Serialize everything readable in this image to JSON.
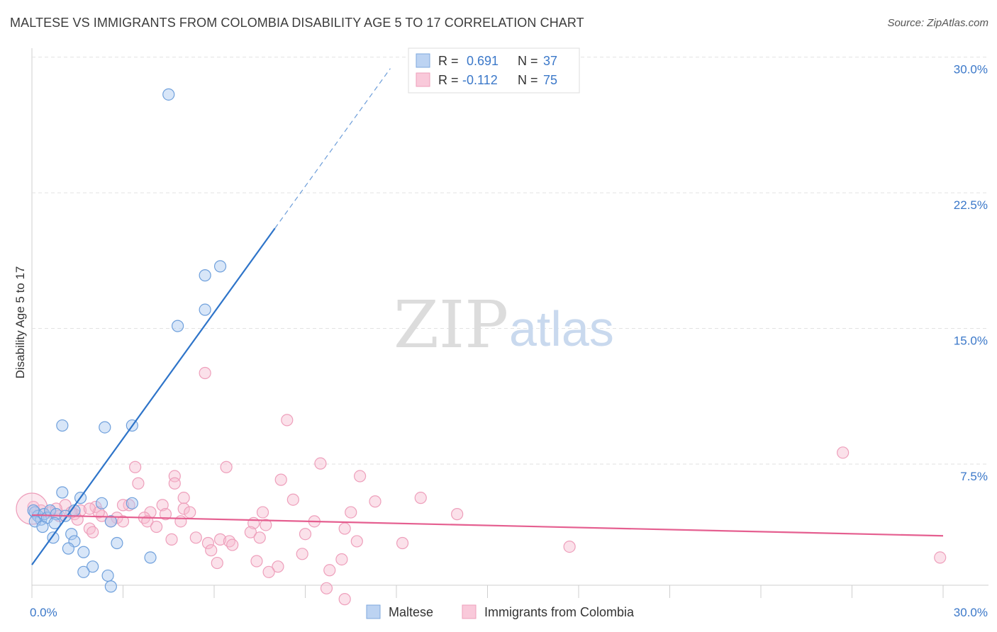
{
  "title": "MALTESE VS IMMIGRANTS FROM COLOMBIA DISABILITY AGE 5 TO 17 CORRELATION CHART",
  "source": "Source: ZipAtlas.com",
  "watermark": {
    "zip": "ZIP",
    "atlas": "atlas"
  },
  "legend_box": {
    "rows": [
      {
        "r_label": "R =",
        "r_value": "0.691",
        "n_label": "N =",
        "n_value": "37"
      },
      {
        "r_label": "R =",
        "r_value": "-0.112",
        "n_label": "N =",
        "n_value": "75"
      }
    ]
  },
  "chart_data": {
    "type": "scatter",
    "title": "MALTESE VS IMMIGRANTS FROM COLOMBIA DISABILITY AGE 5 TO 17 CORRELATION CHART",
    "xlabel": "",
    "ylabel": "Disability Age 5 to 17",
    "xlim": [
      0,
      30
    ],
    "ylim": [
      0,
      31
    ],
    "x_tick_labels": [
      "0.0%",
      "30.0%"
    ],
    "y_ticks": [
      7.5,
      15.0,
      22.5,
      30.0
    ],
    "y_tick_labels": [
      "7.5%",
      "15.0%",
      "22.5%",
      "30.0%"
    ],
    "grid": true,
    "legend_position": "bottom-center",
    "series": [
      {
        "name": "Maltese",
        "color": "#6fa0dc",
        "line_color": "#2e74c9",
        "R": 0.691,
        "N": 37,
        "trend": {
          "x0": 0.0,
          "y0": 2.6,
          "x1": 8.0,
          "y1": 21.2,
          "x_dash_end": 11.8
        },
        "points": [
          [
            4.5,
            28.6
          ],
          [
            6.2,
            19.1
          ],
          [
            5.7,
            18.6
          ],
          [
            5.7,
            16.7
          ],
          [
            4.8,
            15.8
          ],
          [
            1.0,
            10.3
          ],
          [
            2.4,
            10.2
          ],
          [
            3.3,
            10.3
          ],
          [
            1.0,
            6.6
          ],
          [
            1.6,
            6.3
          ],
          [
            2.3,
            6.0
          ],
          [
            3.3,
            6.0
          ],
          [
            0.1,
            5.5
          ],
          [
            0.2,
            5.3
          ],
          [
            0.3,
            5.1
          ],
          [
            0.4,
            5.4
          ],
          [
            0.5,
            5.2
          ],
          [
            0.6,
            5.6
          ],
          [
            0.8,
            5.4
          ],
          [
            1.1,
            5.3
          ],
          [
            1.4,
            5.6
          ],
          [
            0.1,
            5.0
          ],
          [
            0.35,
            4.7
          ],
          [
            0.75,
            4.9
          ],
          [
            2.6,
            5.0
          ],
          [
            1.3,
            4.3
          ],
          [
            0.7,
            4.1
          ],
          [
            1.4,
            3.9
          ],
          [
            2.8,
            3.8
          ],
          [
            1.2,
            3.5
          ],
          [
            1.7,
            3.3
          ],
          [
            3.9,
            3.0
          ],
          [
            2.0,
            2.5
          ],
          [
            1.7,
            2.2
          ],
          [
            2.5,
            2.0
          ],
          [
            2.6,
            1.4
          ],
          [
            0.05,
            5.6
          ]
        ]
      },
      {
        "name": "Immigrants from Colombia",
        "color": "#f29ab8",
        "line_color": "#e55f90",
        "R": -0.112,
        "N": 75,
        "trend": {
          "x0": 0.0,
          "y0": 5.35,
          "x1": 30.0,
          "y1": 4.2
        },
        "points": [
          [
            5.7,
            13.2
          ],
          [
            8.4,
            10.6
          ],
          [
            26.7,
            8.8
          ],
          [
            9.5,
            8.2
          ],
          [
            3.4,
            8.0
          ],
          [
            6.4,
            8.0
          ],
          [
            8.2,
            7.3
          ],
          [
            10.8,
            7.5
          ],
          [
            4.7,
            7.5
          ],
          [
            3.5,
            7.1
          ],
          [
            4.7,
            7.1
          ],
          [
            12.8,
            6.3
          ],
          [
            5.0,
            6.3
          ],
          [
            8.6,
            6.2
          ],
          [
            11.3,
            6.1
          ],
          [
            1.1,
            5.9
          ],
          [
            3.2,
            5.9
          ],
          [
            4.3,
            5.9
          ],
          [
            2.1,
            5.8
          ],
          [
            5.0,
            5.7
          ],
          [
            0.8,
            5.7
          ],
          [
            1.6,
            5.6
          ],
          [
            3.9,
            5.5
          ],
          [
            4.4,
            5.4
          ],
          [
            5.2,
            5.5
          ],
          [
            7.6,
            5.5
          ],
          [
            10.5,
            5.5
          ],
          [
            14.0,
            5.4
          ],
          [
            0.3,
            5.6
          ],
          [
            0.6,
            5.5
          ],
          [
            1.4,
            5.4
          ],
          [
            2.3,
            5.3
          ],
          [
            2.8,
            5.2
          ],
          [
            3.7,
            5.2
          ],
          [
            1.5,
            5.1
          ],
          [
            2.6,
            5.0
          ],
          [
            3.0,
            5.0
          ],
          [
            3.8,
            5.0
          ],
          [
            9.3,
            5.0
          ],
          [
            7.3,
            4.9
          ],
          [
            7.7,
            4.8
          ],
          [
            4.1,
            4.7
          ],
          [
            10.3,
            4.6
          ],
          [
            1.9,
            4.6
          ],
          [
            2.0,
            4.4
          ],
          [
            7.2,
            4.4
          ],
          [
            9.0,
            4.3
          ],
          [
            4.6,
            4.0
          ],
          [
            5.4,
            4.1
          ],
          [
            6.2,
            4.0
          ],
          [
            6.5,
            3.9
          ],
          [
            7.5,
            4.1
          ],
          [
            10.7,
            3.9
          ],
          [
            12.2,
            3.8
          ],
          [
            5.8,
            3.8
          ],
          [
            6.6,
            3.7
          ],
          [
            17.7,
            3.6
          ],
          [
            5.9,
            3.4
          ],
          [
            8.9,
            3.2
          ],
          [
            29.9,
            3.0
          ],
          [
            10.2,
            2.9
          ],
          [
            7.4,
            2.8
          ],
          [
            6.1,
            2.7
          ],
          [
            8.1,
            2.5
          ],
          [
            9.8,
            2.3
          ],
          [
            7.8,
            2.2
          ],
          [
            9.7,
            1.3
          ],
          [
            10.3,
            0.7
          ],
          [
            3.0,
            5.9
          ],
          [
            2.2,
            5.5
          ],
          [
            1.9,
            5.7
          ],
          [
            0.9,
            5.3
          ],
          [
            4.9,
            5.0
          ],
          [
            1.3,
            5.5
          ],
          [
            0.05,
            5.8
          ]
        ]
      }
    ]
  }
}
